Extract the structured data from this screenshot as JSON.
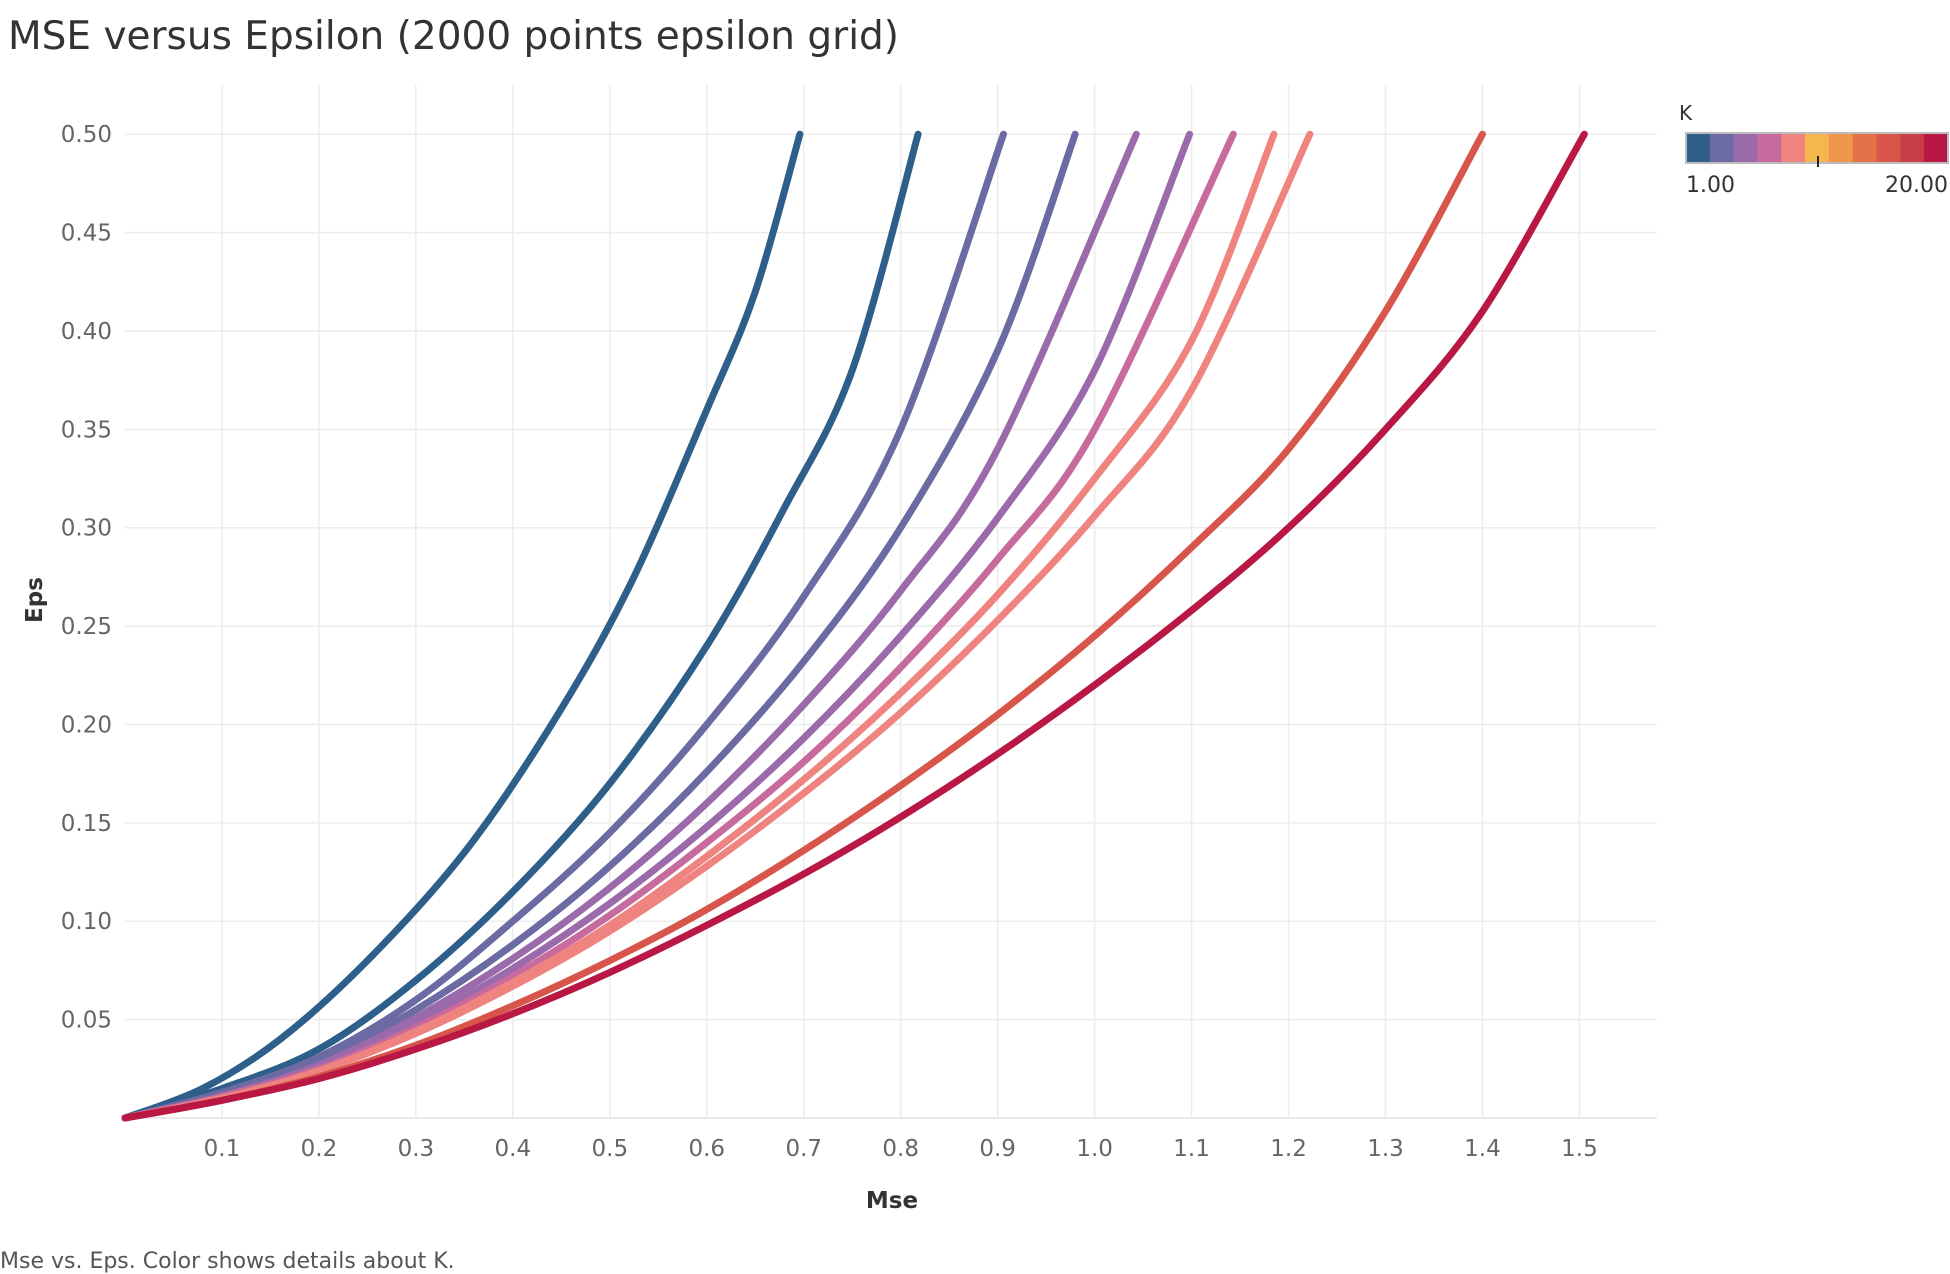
{
  "title": "MSE versus Epsilon (2000 points epsilon grid)",
  "caption": "Mse vs. Eps.  Color shows details about K.",
  "chart_data": {
    "type": "line",
    "title": "MSE versus Epsilon (2000 points epsilon grid)",
    "xlabel": "Mse",
    "ylabel": "Eps",
    "xlim": [
      0.0,
      1.58
    ],
    "ylim": [
      0.0,
      0.525
    ],
    "x_ticks": [
      "0.1",
      "0.2",
      "0.3",
      "0.4",
      "0.5",
      "0.6",
      "0.7",
      "0.8",
      "0.9",
      "1.0",
      "1.1",
      "1.2",
      "1.3",
      "1.4",
      "1.5"
    ],
    "y_ticks": [
      "0.05",
      "0.10",
      "0.15",
      "0.20",
      "0.25",
      "0.30",
      "0.35",
      "0.40",
      "0.45",
      "0.50"
    ],
    "grid": true,
    "legend": {
      "title": "K",
      "placement": "top-right",
      "type": "color-ramp",
      "min_label": "1.00",
      "max_label": "20.00",
      "swatches": [
        "#2e5e8a",
        "#6b6aa3",
        "#9a6aaa",
        "#c76b9e",
        "#ee8380",
        "#f5b64d",
        "#f0954c",
        "#e5714a",
        "#d8554b",
        "#c83d48",
        "#b81843"
      ]
    },
    "series": [
      {
        "color": "#2e5e8a",
        "x": [
          0.0,
          0.08,
          0.16,
          0.25,
          0.35,
          0.44,
          0.52,
          0.6,
          0.65,
          0.696
        ],
        "y": [
          0.0,
          0.015,
          0.04,
          0.08,
          0.135,
          0.2,
          0.27,
          0.36,
          0.42,
          0.5
        ]
      },
      {
        "color": "#2e5e8a",
        "x": [
          0.0,
          0.1,
          0.2,
          0.3,
          0.4,
          0.5,
          0.6,
          0.68,
          0.75,
          0.818
        ],
        "y": [
          0.0,
          0.015,
          0.035,
          0.07,
          0.115,
          0.17,
          0.24,
          0.31,
          0.38,
          0.5
        ]
      },
      {
        "color": "#6b6aa3",
        "x": [
          0.0,
          0.1,
          0.2,
          0.3,
          0.4,
          0.5,
          0.6,
          0.7,
          0.8,
          0.906
        ],
        "y": [
          0.0,
          0.013,
          0.031,
          0.06,
          0.1,
          0.145,
          0.2,
          0.265,
          0.35,
          0.5
        ]
      },
      {
        "color": "#6b6aa3",
        "x": [
          0.0,
          0.1,
          0.2,
          0.3,
          0.4,
          0.5,
          0.6,
          0.7,
          0.8,
          0.9,
          0.98
        ],
        "y": [
          0.0,
          0.012,
          0.029,
          0.055,
          0.088,
          0.128,
          0.176,
          0.232,
          0.3,
          0.39,
          0.5
        ]
      },
      {
        "color": "#9a6aaa",
        "x": [
          0.0,
          0.1,
          0.2,
          0.3,
          0.4,
          0.5,
          0.6,
          0.7,
          0.8,
          0.9,
          1.043
        ],
        "y": [
          0.0,
          0.011,
          0.027,
          0.051,
          0.081,
          0.117,
          0.16,
          0.21,
          0.268,
          0.34,
          0.5
        ]
      },
      {
        "color": "#9a6aaa",
        "x": [
          0.0,
          0.1,
          0.2,
          0.3,
          0.4,
          0.5,
          0.6,
          0.7,
          0.8,
          0.9,
          1.0,
          1.098
        ],
        "y": [
          0.0,
          0.011,
          0.026,
          0.048,
          0.076,
          0.109,
          0.148,
          0.193,
          0.245,
          0.305,
          0.38,
          0.5
        ]
      },
      {
        "color": "#c76b9e",
        "x": [
          0.0,
          0.1,
          0.2,
          0.3,
          0.4,
          0.5,
          0.6,
          0.7,
          0.8,
          0.9,
          1.0,
          1.143
        ],
        "y": [
          0.0,
          0.011,
          0.025,
          0.046,
          0.072,
          0.103,
          0.14,
          0.181,
          0.229,
          0.284,
          0.35,
          0.5
        ]
      },
      {
        "color": "#ee8380",
        "x": [
          0.0,
          0.1,
          0.2,
          0.3,
          0.4,
          0.5,
          0.6,
          0.7,
          0.8,
          0.9,
          1.0,
          1.1,
          1.185
        ],
        "y": [
          0.0,
          0.01,
          0.024,
          0.044,
          0.069,
          0.098,
          0.133,
          0.172,
          0.216,
          0.266,
          0.325,
          0.395,
          0.5
        ]
      },
      {
        "color": "#ee8380",
        "x": [
          0.0,
          0.1,
          0.2,
          0.3,
          0.4,
          0.5,
          0.6,
          0.7,
          0.8,
          0.9,
          1.0,
          1.1,
          1.222
        ],
        "y": [
          0.0,
          0.01,
          0.024,
          0.043,
          0.067,
          0.095,
          0.128,
          0.165,
          0.206,
          0.253,
          0.306,
          0.37,
          0.5
        ]
      },
      {
        "color": "#d8554b",
        "x": [
          0.0,
          0.1,
          0.2,
          0.3,
          0.4,
          0.5,
          0.6,
          0.7,
          0.8,
          0.9,
          1.0,
          1.1,
          1.2,
          1.3,
          1.4
        ],
        "y": [
          0.0,
          0.009,
          0.021,
          0.037,
          0.057,
          0.08,
          0.106,
          0.136,
          0.169,
          0.205,
          0.245,
          0.29,
          0.34,
          0.41,
          0.5
        ]
      },
      {
        "color": "#b81843",
        "x": [
          0.0,
          0.1,
          0.2,
          0.3,
          0.4,
          0.5,
          0.6,
          0.7,
          0.8,
          0.9,
          1.0,
          1.1,
          1.2,
          1.3,
          1.4,
          1.505
        ],
        "y": [
          0.0,
          0.009,
          0.02,
          0.035,
          0.053,
          0.074,
          0.098,
          0.124,
          0.153,
          0.185,
          0.22,
          0.258,
          0.3,
          0.35,
          0.41,
          0.5
        ]
      }
    ]
  }
}
